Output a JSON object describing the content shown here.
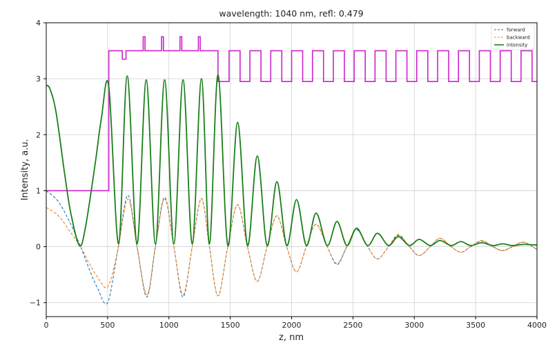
{
  "chart_data": {
    "type": "line",
    "title": "wavelength: 1040 nm, refl: 0.479",
    "xlabel": "z, nm",
    "ylabel": "Intensity, a.u.",
    "xlim": [
      0,
      4000
    ],
    "ylim": [
      -1.25,
      4.0
    ],
    "xticks": [
      0,
      500,
      1000,
      1500,
      2000,
      2500,
      3000,
      3500,
      4000
    ],
    "yticks": [
      -1,
      0,
      1,
      2,
      3,
      4
    ],
    "xtick_labels": [
      "0",
      "500",
      "1000",
      "1500",
      "2000",
      "2500",
      "3000",
      "3500",
      "4000"
    ],
    "ytick_labels": [
      "−1",
      "0",
      "1",
      "2",
      "3",
      "4"
    ],
    "grid": true,
    "legend_position": "top-right",
    "series": [
      {
        "name": "forward",
        "color": "#1f77b4",
        "style": "dashed",
        "x": [
          0,
          100,
          200,
          280,
          350,
          420,
          500,
          580,
          665,
          740,
          820,
          890,
          965,
          1040,
          1115,
          1190,
          1265,
          1330,
          1400,
          1480,
          1560,
          1640,
          1720,
          1800,
          1880,
          1960,
          2040,
          2120,
          2200,
          2290,
          2370,
          2450,
          2530,
          2620,
          2700,
          2790,
          2870,
          2960,
          3040,
          3130,
          3210,
          3300,
          3380,
          3460,
          3550,
          3640,
          3720,
          3800,
          3890,
          4000
        ],
        "y": [
          1.0,
          0.8,
          0.4,
          0.0,
          -0.4,
          -0.75,
          -1.0,
          -0.1,
          0.92,
          0.0,
          -0.9,
          0.0,
          0.88,
          0.0,
          -0.9,
          0.0,
          0.86,
          0.0,
          -0.88,
          0.0,
          0.75,
          0.0,
          -0.62,
          0.0,
          0.55,
          0.0,
          -0.45,
          0.0,
          0.4,
          0.0,
          -0.32,
          0.0,
          0.3,
          0.0,
          -0.22,
          0.0,
          0.2,
          0.0,
          -0.16,
          0.0,
          0.15,
          0.0,
          -0.1,
          0.0,
          0.1,
          0.0,
          -0.07,
          0.0,
          0.08,
          -0.05
        ]
      },
      {
        "name": "backward",
        "color": "#ff7f0e",
        "style": "dashed",
        "x": [
          0,
          100,
          200,
          280,
          350,
          420,
          500,
          580,
          665,
          740,
          820,
          890,
          965,
          1040,
          1115,
          1190,
          1265,
          1330,
          1400,
          1480,
          1560,
          1640,
          1720,
          1800,
          1880,
          1960,
          2040,
          2120,
          2200,
          2290,
          2370,
          2450,
          2530,
          2620,
          2700,
          2790,
          2870,
          2960,
          3040,
          3130,
          3210,
          3300,
          3380,
          3460,
          3550,
          3640,
          3720,
          3800,
          3890,
          4000
        ],
        "y": [
          0.7,
          0.55,
          0.25,
          0.0,
          -0.3,
          -0.55,
          -0.72,
          -0.1,
          0.85,
          0.0,
          -0.86,
          0.0,
          0.85,
          0.0,
          -0.86,
          0.0,
          0.86,
          0.0,
          -0.88,
          0.0,
          0.75,
          0.0,
          -0.62,
          0.0,
          0.55,
          0.0,
          -0.45,
          0.0,
          0.4,
          0.0,
          -0.3,
          0.0,
          0.32,
          0.0,
          -0.22,
          0.0,
          0.22,
          0.0,
          -0.16,
          0.0,
          0.15,
          0.0,
          -0.1,
          0.0,
          0.11,
          0.0,
          -0.07,
          0.0,
          0.08,
          -0.05
        ]
      },
      {
        "name": "intensity",
        "color": "#1a7f1a",
        "style": "solid",
        "x": [
          0,
          30,
          80,
          150,
          200,
          270,
          320,
          400,
          450,
          510,
          590,
          660,
          740,
          815,
          890,
          965,
          1040,
          1115,
          1190,
          1265,
          1330,
          1400,
          1480,
          1560,
          1640,
          1720,
          1800,
          1880,
          1960,
          2040,
          2120,
          2200,
          2290,
          2370,
          2450,
          2530,
          2620,
          2700,
          2790,
          2870,
          2960,
          3040,
          3130,
          3210,
          3300,
          3380,
          3460,
          3550,
          3640,
          3720,
          3800,
          3890,
          4000
        ],
        "y": [
          2.88,
          2.82,
          2.4,
          1.3,
          0.6,
          0.02,
          0.35,
          1.5,
          2.3,
          2.86,
          0.05,
          3.05,
          0.05,
          2.98,
          0.05,
          2.98,
          0.05,
          2.98,
          0.05,
          3.0,
          0.05,
          3.07,
          0.02,
          2.22,
          0.02,
          1.62,
          0.02,
          1.16,
          0.02,
          0.84,
          0.02,
          0.6,
          0.02,
          0.45,
          0.02,
          0.33,
          0.02,
          0.24,
          0.02,
          0.18,
          0.02,
          0.13,
          0.02,
          0.11,
          0.02,
          0.09,
          0.02,
          0.07,
          0.02,
          0.05,
          0.02,
          0.04,
          0.03
        ]
      },
      {
        "name": "",
        "color": "#cc22cc",
        "style": "solid",
        "x": [
          0,
          510,
          510,
          620,
          620,
          650,
          650,
          790,
          790,
          805,
          805,
          820,
          820,
          940,
          940,
          955,
          955,
          970,
          970,
          1090,
          1090,
          1105,
          1105,
          1120,
          1120,
          1240,
          1240,
          1255,
          1255,
          1270,
          1270,
          1400,
          1400,
          1490,
          1490,
          1580,
          1580,
          1660,
          1660,
          1750,
          1750,
          1830,
          1830,
          1920,
          1920,
          2000,
          2000,
          2090,
          2090,
          2170,
          2170,
          2260,
          2260,
          2340,
          2340,
          2430,
          2430,
          2510,
          2510,
          2600,
          2600,
          2680,
          2680,
          2770,
          2770,
          2850,
          2850,
          2940,
          2940,
          3020,
          3020,
          3110,
          3110,
          3190,
          3190,
          3280,
          3280,
          3360,
          3360,
          3450,
          3450,
          3530,
          3530,
          3620,
          3620,
          3700,
          3700,
          3790,
          3790,
          3870,
          3870,
          3960,
          3960,
          4000
        ],
        "y": [
          1.0,
          1.0,
          3.5,
          3.5,
          3.35,
          3.35,
          3.5,
          3.5,
          3.75,
          3.75,
          3.5,
          3.5,
          3.5,
          3.5,
          3.75,
          3.75,
          3.5,
          3.5,
          3.5,
          3.5,
          3.75,
          3.75,
          3.5,
          3.5,
          3.5,
          3.5,
          3.75,
          3.75,
          3.5,
          3.5,
          3.5,
          3.5,
          2.95,
          2.95,
          3.5,
          3.5,
          2.95,
          2.95,
          3.5,
          3.5,
          2.95,
          2.95,
          3.5,
          3.5,
          2.95,
          2.95,
          3.5,
          3.5,
          2.95,
          2.95,
          3.5,
          3.5,
          2.95,
          2.95,
          3.5,
          3.5,
          2.95,
          2.95,
          3.5,
          3.5,
          2.95,
          2.95,
          3.5,
          3.5,
          2.95,
          2.95,
          3.5,
          3.5,
          2.95,
          2.95,
          3.5,
          3.5,
          2.95,
          2.95,
          3.5,
          3.5,
          2.95,
          2.95,
          3.5,
          3.5,
          2.95,
          2.95,
          3.5,
          3.5,
          2.95,
          2.95,
          3.5,
          3.5,
          2.95,
          2.95,
          3.5,
          3.5,
          2.95,
          2.95
        ]
      }
    ]
  }
}
